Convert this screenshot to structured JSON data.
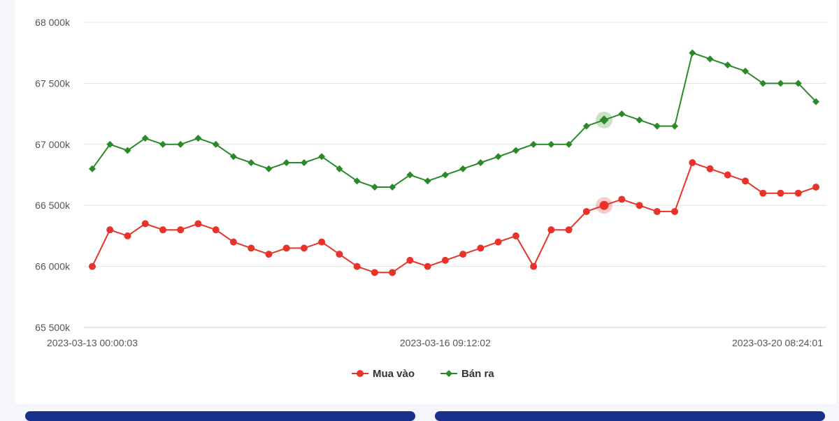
{
  "chart_data": {
    "type": "line",
    "y_ticks": [
      "65 500k",
      "66 000k",
      "66 500k",
      "67 000k",
      "67 500k",
      "68 000k"
    ],
    "ylim": [
      65500,
      68000
    ],
    "x_tick_labels": [
      "2023-03-13 00:00:03",
      "2023-03-16 09:12:02",
      "2023-03-20 08:24:01"
    ],
    "x_tick_index": [
      0,
      20,
      41
    ],
    "grid": true,
    "legend_position": "bottom",
    "series": [
      {
        "name": "Mua vào",
        "color": "#e9332a",
        "marker": "circle",
        "values": [
          66000,
          66300,
          66250,
          66350,
          66300,
          66300,
          66350,
          66300,
          66200,
          66150,
          66100,
          66150,
          66150,
          66200,
          66100,
          66000,
          65950,
          65950,
          66050,
          66000,
          66050,
          66100,
          66150,
          66200,
          66250,
          66000,
          66300,
          66300,
          66450,
          66500,
          66550,
          66500,
          66450,
          66450,
          66850,
          66800,
          66750,
          66700,
          66600,
          66600,
          66600,
          66650
        ]
      },
      {
        "name": "Bán ra",
        "color": "#2a8a2a",
        "marker": "diamond",
        "values": [
          66800,
          67000,
          66950,
          67050,
          67000,
          67000,
          67050,
          67000,
          66900,
          66850,
          66800,
          66850,
          66850,
          66900,
          66800,
          66700,
          66650,
          66650,
          66750,
          66700,
          66750,
          66800,
          66850,
          66900,
          66950,
          67000,
          67000,
          67000,
          67150,
          67200,
          67250,
          67200,
          67150,
          67150,
          67750,
          67700,
          67650,
          67600,
          67500,
          67500,
          67500,
          67350
        ]
      }
    ],
    "highlight_index": 29
  }
}
